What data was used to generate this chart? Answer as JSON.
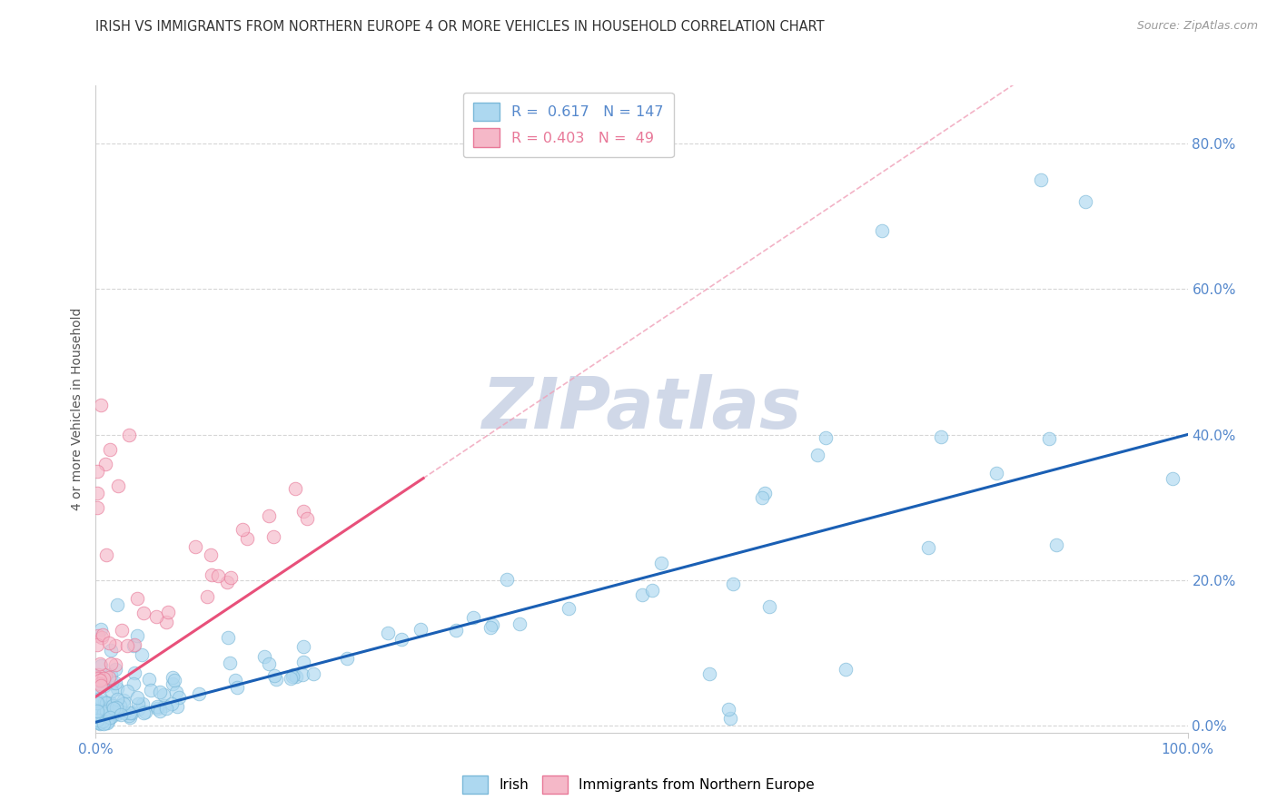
{
  "title": "IRISH VS IMMIGRANTS FROM NORTHERN EUROPE 4 OR MORE VEHICLES IN HOUSEHOLD CORRELATION CHART",
  "source": "Source: ZipAtlas.com",
  "ylabel": "4 or more Vehicles in Household",
  "legend_irish": "Irish",
  "legend_immigrants": "Immigrants from Northern Europe",
  "r_irish": 0.617,
  "n_irish": 147,
  "r_immigrants": 0.403,
  "n_immigrants": 49,
  "blue_color": "#ADD8F0",
  "blue_edge": "#7AB8D8",
  "pink_color": "#F5B8C8",
  "pink_edge": "#E87898",
  "line_blue": "#1A5FB4",
  "line_pink": "#E8507A",
  "line_pink_dash": "#F0A0B8",
  "watermark": "ZIPatlas",
  "watermark_color": "#D0D8E8",
  "background": "#FFFFFF",
  "title_color": "#333333",
  "axis_label_color": "#555555",
  "tick_color": "#5588CC",
  "xlim": [
    0.0,
    1.0
  ],
  "ylim": [
    -0.01,
    0.88
  ],
  "ytick_vals": [
    0.0,
    0.2,
    0.4,
    0.6,
    0.8
  ],
  "ytick_labels": [
    "0.0%",
    "20.0%",
    "40.0%",
    "60.0%",
    "80.0%"
  ],
  "xtick_start": "0.0%",
  "xtick_end": "100.0%",
  "irish_seed": 77,
  "immig_seed": 42
}
